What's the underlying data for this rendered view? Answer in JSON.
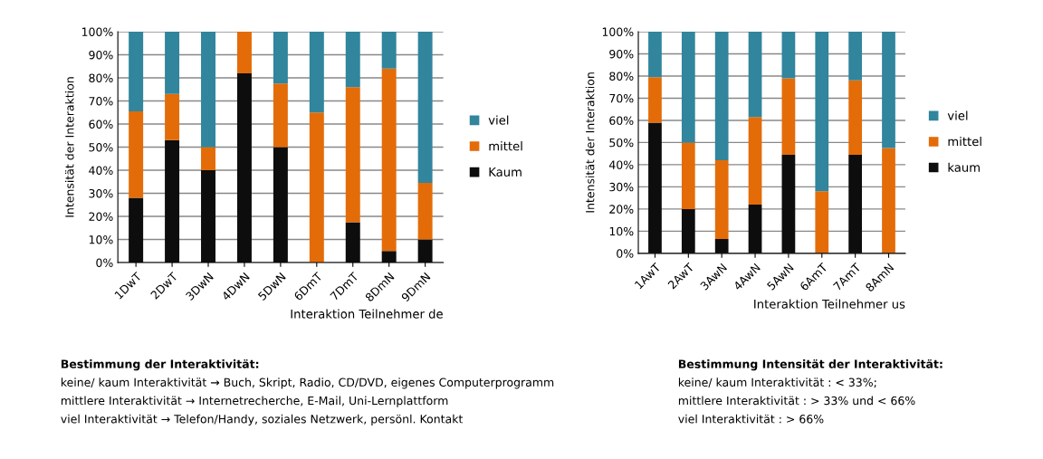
{
  "chart_data": [
    {
      "type": "bar",
      "stacked": true,
      "xlabel": "Interaktion Teilnehmer de",
      "ylabel": "Intensität der Interaktion",
      "categories": [
        "1DwT",
        "2DwT",
        "3DwN",
        "4DwN",
        "5DwN",
        "6DmT",
        "7DmT",
        "8DmN",
        "9DmN"
      ],
      "series": [
        {
          "name": "Kaum",
          "color": "#0d0d0d",
          "values": [
            28,
            53,
            40,
            82,
            50,
            0,
            17.5,
            5,
            10
          ]
        },
        {
          "name": "mittel",
          "color": "#e36c09",
          "values": [
            37.5,
            20,
            10,
            18,
            27.5,
            65,
            58.5,
            79,
            24.5
          ]
        },
        {
          "name": "viel",
          "color": "#31859c",
          "values": [
            34.5,
            27,
            50,
            0,
            22.5,
            35,
            24,
            16,
            65.5
          ]
        }
      ],
      "ylim": [
        0,
        100
      ],
      "yticks": [
        {
          "value": 0,
          "label": "0%"
        },
        {
          "value": 10,
          "label": "10%"
        },
        {
          "value": 20,
          "label": "20%"
        },
        {
          "value": 30,
          "label": "30%"
        },
        {
          "value": 40,
          "label": "40%"
        },
        {
          "value": 50,
          "label": "50%"
        },
        {
          "value": 60,
          "label": "60%"
        },
        {
          "value": 70,
          "label": "70%"
        },
        {
          "value": 80,
          "label": "80%"
        },
        {
          "value": 90,
          "label": "90%"
        },
        {
          "value": 100,
          "label": "100%"
        }
      ],
      "grid": "y",
      "legend": "right",
      "annotations": [
        "Bestimmung der Interaktivität:",
        "keine/ kaum Interaktivität → Buch, Skript, Radio, CD/DVD, eigenes Computerprogramm",
        "mittlere Interaktivität → Internetrecherche, E-Mail, Uni-Lernplattform",
        "viel Interaktivität → Telefon/Handy, soziales Netzwerk, persönl. Kontakt"
      ]
    },
    {
      "type": "bar",
      "stacked": true,
      "xlabel": "Interaktion Teilnehmer us",
      "ylabel": "Intensität der Interaktion",
      "categories": [
        "1AwT",
        "2AwT",
        "3AwN",
        "4AwN",
        "5AwN",
        "6AmT",
        "7AmT",
        "8AmN"
      ],
      "series": [
        {
          "name": "kaum",
          "color": "#0d0d0d",
          "values": [
            59,
            20,
            6.5,
            22,
            44.5,
            0,
            44.5,
            0
          ]
        },
        {
          "name": "mittel",
          "color": "#e36c09",
          "values": [
            20.5,
            30,
            35.5,
            39.5,
            34.5,
            28,
            33.5,
            47.5
          ]
        },
        {
          "name": "viel",
          "color": "#31859c",
          "values": [
            20.5,
            50,
            58,
            38.5,
            21,
            72,
            22,
            52.5
          ]
        }
      ],
      "ylim": [
        0,
        100
      ],
      "yticks": [
        {
          "value": 0,
          "label": "0%"
        },
        {
          "value": 10,
          "label": "10%"
        },
        {
          "value": 20,
          "label": "20%"
        },
        {
          "value": 30,
          "label": "30%"
        },
        {
          "value": 40,
          "label": "40%"
        },
        {
          "value": 50,
          "label": "50%"
        },
        {
          "value": 60,
          "label": "60%"
        },
        {
          "value": 70,
          "label": "70%"
        },
        {
          "value": 80,
          "label": "80%"
        },
        {
          "value": 90,
          "label": "90%"
        },
        {
          "value": 100,
          "label": "100%"
        }
      ],
      "grid": "y",
      "legend": "right",
      "annotations": [
        "Bestimmung Intensität der Interaktivität:",
        "keine/ kaum Interaktivität : < 33%;",
        "mittlere Interaktivität : > 33% und < 66%",
        "viel Interaktivität : > 66%"
      ]
    }
  ]
}
